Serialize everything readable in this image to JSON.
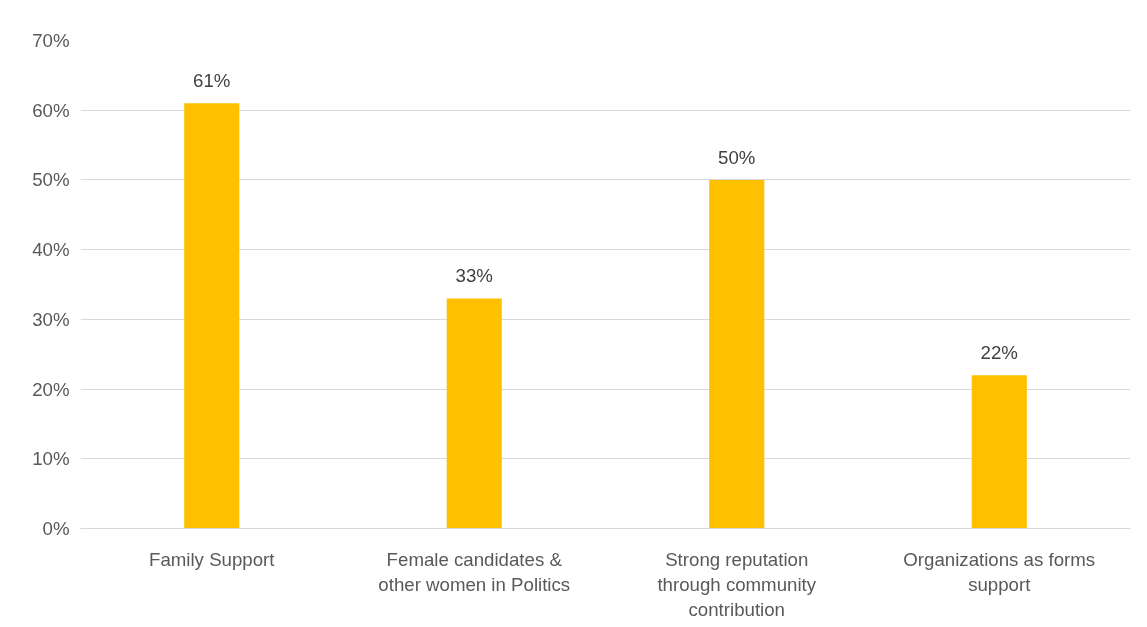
{
  "chart_data": {
    "type": "bar",
    "categories": [
      "Family Support",
      "Female candidates & other women in Politics",
      "Strong reputation through community contribution",
      "Organizations as forms support"
    ],
    "values": [
      61,
      33,
      50,
      22
    ],
    "value_labels": [
      "61%",
      "33%",
      "50%",
      "22%"
    ],
    "color": "#ffc000",
    "ylim": [
      0,
      70
    ],
    "yticks": [
      {
        "value": 0,
        "label": "0%"
      },
      {
        "value": 10,
        "label": "10%"
      },
      {
        "value": 20,
        "label": "20%"
      },
      {
        "value": 30,
        "label": "30%"
      },
      {
        "value": 40,
        "label": "40%"
      },
      {
        "value": 50,
        "label": "50%"
      },
      {
        "value": 60,
        "label": "60%"
      },
      {
        "value": 70,
        "label": "70%"
      }
    ],
    "grid": "y"
  }
}
